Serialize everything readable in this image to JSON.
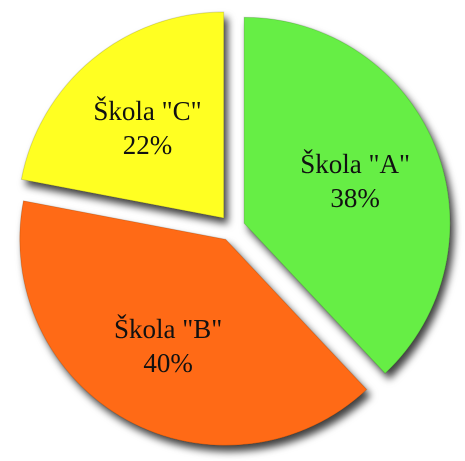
{
  "chart_data": {
    "type": "pie",
    "categories": [
      "Škola \"A\"",
      "Škola \"B\"",
      "Škola \"C\""
    ],
    "values": [
      38,
      40,
      22
    ],
    "value_labels": [
      "38%",
      "40%",
      "22%"
    ],
    "colors": [
      "#66ee44",
      "#ff6a12",
      "#ffff22"
    ]
  }
}
